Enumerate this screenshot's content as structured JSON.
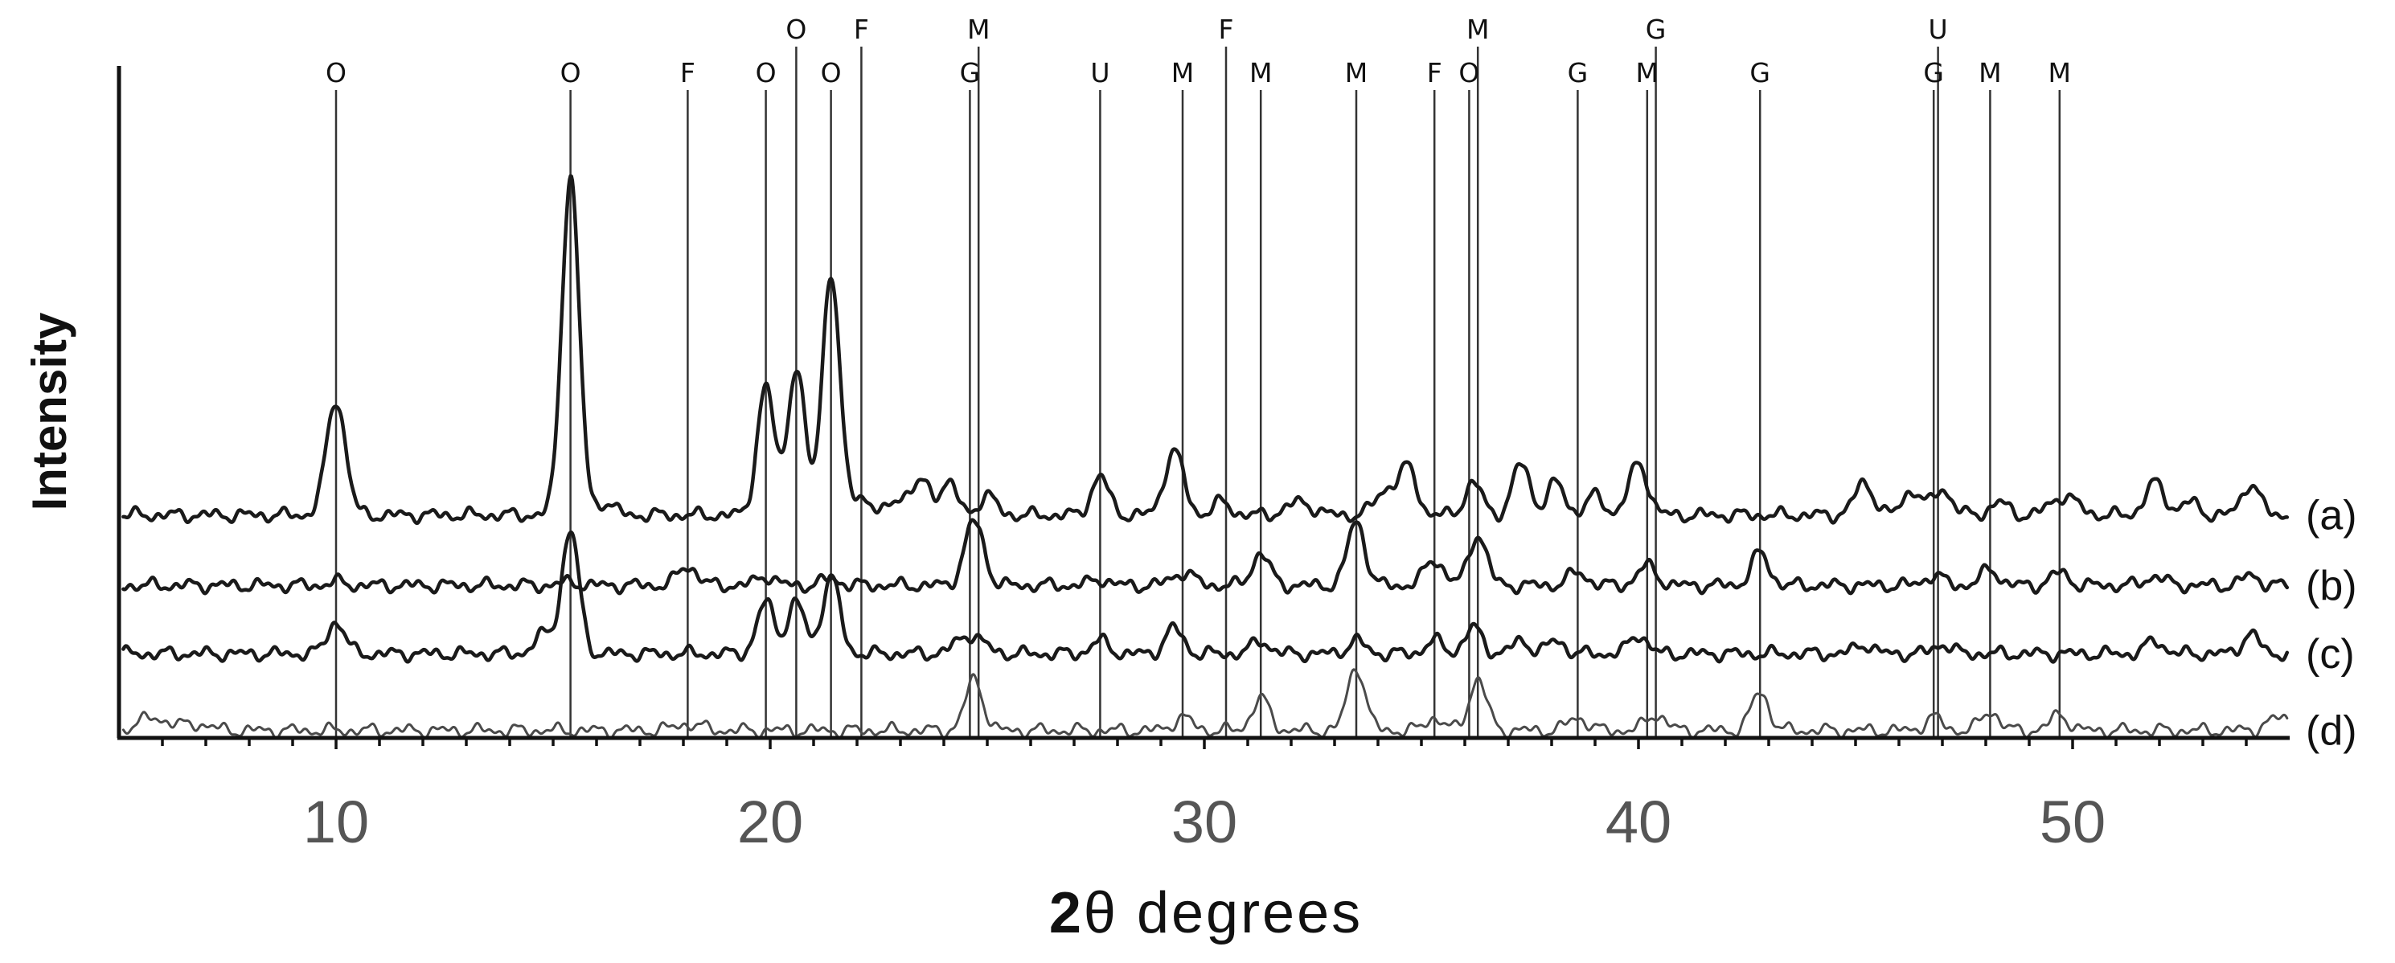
{
  "chart_data": {
    "type": "line",
    "xlabel_prefix": "2",
    "xlabel_symbol": "θ",
    "xlabel_suffix": " degrees",
    "ylabel": "Intensity",
    "xlim": [
      5,
      55
    ],
    "y_ticks_shown": false,
    "grid": false,
    "x_ticks": [
      {
        "value": 10,
        "label": "10"
      },
      {
        "value": 20,
        "label": "20"
      },
      {
        "value": 30,
        "label": "30"
      },
      {
        "value": 40,
        "label": "40"
      },
      {
        "value": 50,
        "label": "50"
      }
    ],
    "minor_tick_step": 1,
    "phase_markers": [
      {
        "x": 10.0,
        "label": "O"
      },
      {
        "x": 15.4,
        "label": "O"
      },
      {
        "x": 18.1,
        "label": "F"
      },
      {
        "x": 19.9,
        "label": "O"
      },
      {
        "x": 20.6,
        "label": "O",
        "row": "upper"
      },
      {
        "x": 21.4,
        "label": "O"
      },
      {
        "x": 22.1,
        "label": "F",
        "row": "upper"
      },
      {
        "x": 24.6,
        "label": "G"
      },
      {
        "x": 24.8,
        "label": "M",
        "row": "upper"
      },
      {
        "x": 27.6,
        "label": "U"
      },
      {
        "x": 29.5,
        "label": "M"
      },
      {
        "x": 30.5,
        "label": "F",
        "row": "upper"
      },
      {
        "x": 31.3,
        "label": "M"
      },
      {
        "x": 33.5,
        "label": "M"
      },
      {
        "x": 35.3,
        "label": "F"
      },
      {
        "x": 36.1,
        "label": "O"
      },
      {
        "x": 36.3,
        "label": "M",
        "row": "upper"
      },
      {
        "x": 38.6,
        "label": "G"
      },
      {
        "x": 40.2,
        "label": "M"
      },
      {
        "x": 40.4,
        "label": "G",
        "row": "upper"
      },
      {
        "x": 42.8,
        "label": "G"
      },
      {
        "x": 46.8,
        "label": "G"
      },
      {
        "x": 46.9,
        "label": "U",
        "row": "upper"
      },
      {
        "x": 48.1,
        "label": "M"
      },
      {
        "x": 49.7,
        "label": "M"
      }
    ],
    "series": [
      {
        "name": "(a)",
        "color": "#1a1a1a",
        "baseline": 0.345,
        "peaks": [
          {
            "x": 10.0,
            "h": 0.18,
            "w": 0.22
          },
          {
            "x": 15.4,
            "h": 0.53,
            "w": 0.2
          },
          {
            "x": 16.2,
            "h": 0.02,
            "w": 0.2
          },
          {
            "x": 19.9,
            "h": 0.2,
            "w": 0.2
          },
          {
            "x": 20.6,
            "h": 0.23,
            "w": 0.2
          },
          {
            "x": 21.4,
            "h": 0.38,
            "w": 0.2
          },
          {
            "x": 22.1,
            "h": 0.03,
            "w": 0.2
          },
          {
            "x": 23.0,
            "h": 0.03,
            "w": 0.2
          },
          {
            "x": 23.5,
            "h": 0.05,
            "w": 0.2
          },
          {
            "x": 24.1,
            "h": 0.05,
            "w": 0.2
          },
          {
            "x": 25.0,
            "h": 0.03,
            "w": 0.2
          },
          {
            "x": 27.6,
            "h": 0.06,
            "w": 0.2
          },
          {
            "x": 29.3,
            "h": 0.1,
            "w": 0.22
          },
          {
            "x": 30.4,
            "h": 0.02,
            "w": 0.2
          },
          {
            "x": 32.2,
            "h": 0.02,
            "w": 0.3
          },
          {
            "x": 34.2,
            "h": 0.04,
            "w": 0.25
          },
          {
            "x": 34.7,
            "h": 0.07,
            "w": 0.2
          },
          {
            "x": 36.2,
            "h": 0.05,
            "w": 0.2
          },
          {
            "x": 37.3,
            "h": 0.08,
            "w": 0.2
          },
          {
            "x": 38.1,
            "h": 0.05,
            "w": 0.2
          },
          {
            "x": 39.0,
            "h": 0.03,
            "w": 0.2
          },
          {
            "x": 40.0,
            "h": 0.08,
            "w": 0.22
          },
          {
            "x": 45.2,
            "h": 0.05,
            "w": 0.22
          },
          {
            "x": 46.3,
            "h": 0.04,
            "w": 0.2
          },
          {
            "x": 47.0,
            "h": 0.04,
            "w": 0.22
          },
          {
            "x": 48.3,
            "h": 0.02,
            "w": 0.2
          },
          {
            "x": 49.8,
            "h": 0.03,
            "w": 0.3
          },
          {
            "x": 51.9,
            "h": 0.05,
            "w": 0.22
          },
          {
            "x": 52.7,
            "h": 0.02,
            "w": 0.2
          },
          {
            "x": 54.1,
            "h": 0.05,
            "w": 0.2
          }
        ]
      },
      {
        "name": "(b)",
        "color": "#1a1a1a",
        "baseline": 0.235,
        "peaks": [
          {
            "x": 10.0,
            "h": 0.005,
            "w": 0.2
          },
          {
            "x": 15.4,
            "h": 0.005,
            "w": 0.2
          },
          {
            "x": 18.1,
            "h": 0.03,
            "w": 0.22
          },
          {
            "x": 19.9,
            "h": 0.015,
            "w": 0.2
          },
          {
            "x": 21.4,
            "h": 0.01,
            "w": 0.2
          },
          {
            "x": 24.7,
            "h": 0.1,
            "w": 0.22
          },
          {
            "x": 27.6,
            "h": 0.01,
            "w": 0.2
          },
          {
            "x": 29.5,
            "h": 0.02,
            "w": 0.25
          },
          {
            "x": 31.3,
            "h": 0.05,
            "w": 0.2
          },
          {
            "x": 33.5,
            "h": 0.1,
            "w": 0.2
          },
          {
            "x": 35.3,
            "h": 0.04,
            "w": 0.22
          },
          {
            "x": 36.3,
            "h": 0.08,
            "w": 0.2
          },
          {
            "x": 38.6,
            "h": 0.02,
            "w": 0.22
          },
          {
            "x": 40.2,
            "h": 0.03,
            "w": 0.22
          },
          {
            "x": 42.8,
            "h": 0.05,
            "w": 0.2
          },
          {
            "x": 46.8,
            "h": 0.015,
            "w": 0.22
          },
          {
            "x": 48.1,
            "h": 0.025,
            "w": 0.2
          },
          {
            "x": 49.7,
            "h": 0.02,
            "w": 0.2
          },
          {
            "x": 51.9,
            "h": 0.015,
            "w": 0.2
          },
          {
            "x": 54.1,
            "h": 0.015,
            "w": 0.2
          }
        ]
      },
      {
        "name": "(c)",
        "color": "#1a1a1a",
        "baseline": 0.128,
        "peaks": [
          {
            "x": 10.0,
            "h": 0.05,
            "w": 0.2
          },
          {
            "x": 14.8,
            "h": 0.03,
            "w": 0.22
          },
          {
            "x": 15.4,
            "h": 0.19,
            "w": 0.2
          },
          {
            "x": 19.9,
            "h": 0.08,
            "w": 0.2
          },
          {
            "x": 20.6,
            "h": 0.08,
            "w": 0.2
          },
          {
            "x": 21.4,
            "h": 0.12,
            "w": 0.2
          },
          {
            "x": 24.6,
            "h": 0.03,
            "w": 0.3
          },
          {
            "x": 27.6,
            "h": 0.02,
            "w": 0.2
          },
          {
            "x": 29.3,
            "h": 0.04,
            "w": 0.2
          },
          {
            "x": 31.3,
            "h": 0.02,
            "w": 0.2
          },
          {
            "x": 33.5,
            "h": 0.02,
            "w": 0.2
          },
          {
            "x": 35.3,
            "h": 0.02,
            "w": 0.2
          },
          {
            "x": 36.2,
            "h": 0.04,
            "w": 0.2
          },
          {
            "x": 37.3,
            "h": 0.02,
            "w": 0.2
          },
          {
            "x": 38.1,
            "h": 0.02,
            "w": 0.2
          },
          {
            "x": 40.0,
            "h": 0.03,
            "w": 0.2
          },
          {
            "x": 45.2,
            "h": 0.015,
            "w": 0.2
          },
          {
            "x": 47.0,
            "h": 0.015,
            "w": 0.2
          },
          {
            "x": 51.9,
            "h": 0.02,
            "w": 0.2
          },
          {
            "x": 54.1,
            "h": 0.03,
            "w": 0.2
          }
        ]
      },
      {
        "name": "(d)",
        "color": "#4a4a4a",
        "baseline": 0.008,
        "peaks": [
          {
            "x": 5.8,
            "h": 0.02,
            "w": 0.35
          },
          {
            "x": 6.8,
            "h": 0.01,
            "w": 0.3
          },
          {
            "x": 18.1,
            "h": 0.01,
            "w": 0.3
          },
          {
            "x": 24.7,
            "h": 0.08,
            "w": 0.2
          },
          {
            "x": 29.5,
            "h": 0.02,
            "w": 0.22
          },
          {
            "x": 31.3,
            "h": 0.05,
            "w": 0.2
          },
          {
            "x": 33.5,
            "h": 0.1,
            "w": 0.2
          },
          {
            "x": 35.3,
            "h": 0.02,
            "w": 0.2
          },
          {
            "x": 36.3,
            "h": 0.08,
            "w": 0.2
          },
          {
            "x": 38.6,
            "h": 0.02,
            "w": 0.22
          },
          {
            "x": 40.4,
            "h": 0.025,
            "w": 0.22
          },
          {
            "x": 42.8,
            "h": 0.06,
            "w": 0.2
          },
          {
            "x": 46.8,
            "h": 0.02,
            "w": 0.2
          },
          {
            "x": 48.1,
            "h": 0.03,
            "w": 0.2
          },
          {
            "x": 49.7,
            "h": 0.025,
            "w": 0.2
          },
          {
            "x": 54.8,
            "h": 0.02,
            "w": 0.3
          }
        ]
      }
    ]
  }
}
